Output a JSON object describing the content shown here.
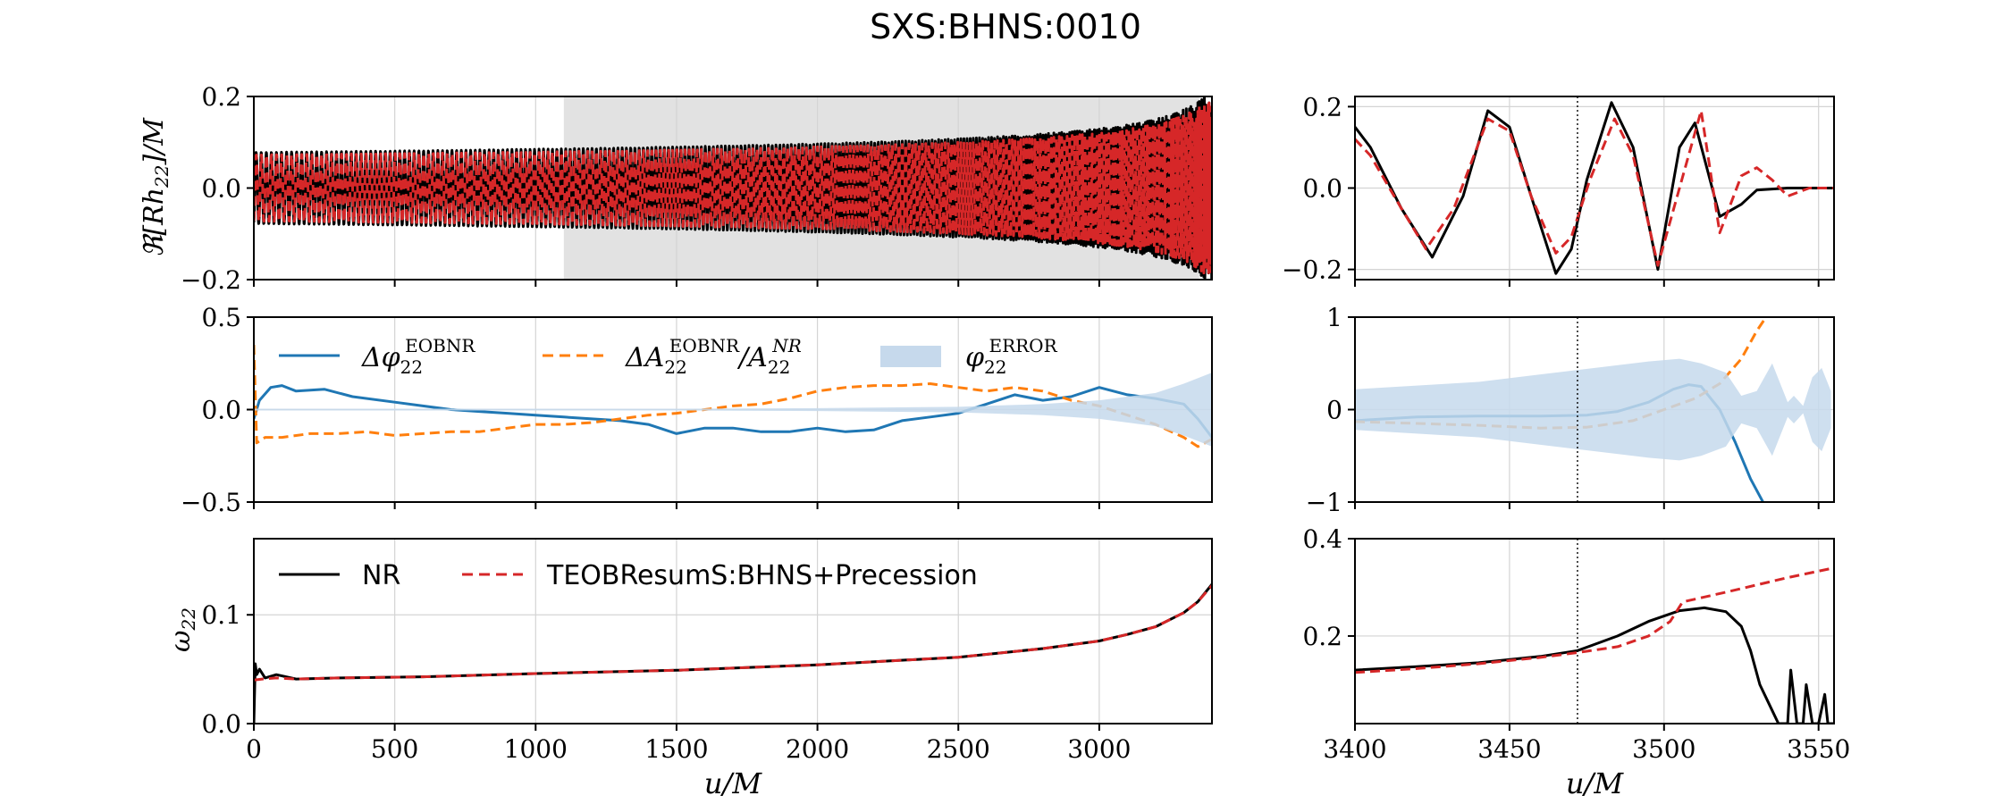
{
  "title": "SXS:BHNS:0010",
  "xlabel": "u/M",
  "colors": {
    "nr": "#000000",
    "eob": "#d62728",
    "dphi": "#1f77b4",
    "damp": "#ff7f0e",
    "err_band": "#c6d9ec",
    "window": "#e2e2e2"
  },
  "chart_data": [
    {
      "id": "strain-full",
      "type": "line",
      "ylabel": "ℜ[R h22]/M",
      "xlim": [
        0,
        3400
      ],
      "ylim": [
        -0.2,
        0.2
      ],
      "xticks": [
        0,
        500,
        1000,
        1500,
        2000,
        2500,
        3000
      ],
      "yticks": [
        -0.2,
        0.0,
        0.2
      ],
      "ytick_labels": [
        "−0.2",
        "0.0",
        "0.2"
      ],
      "shaded_window": [
        1100,
        3355
      ],
      "series": [
        {
          "name": "NR",
          "color": "#000000",
          "style": "solid",
          "kind": "strain",
          "phase": 1.9,
          "amp_scale": 1.0
        },
        {
          "name": "TEOBResumS:BHNS+Precession",
          "color": "#d62728",
          "style": "dashed",
          "kind": "strain",
          "phase": 1.75,
          "amp_scale": 0.93
        }
      ]
    },
    {
      "id": "diff-full",
      "type": "line",
      "xlim": [
        0,
        3400
      ],
      "ylim": [
        -0.5,
        0.5
      ],
      "xticks": [
        0,
        500,
        1000,
        1500,
        2000,
        2500,
        3000
      ],
      "yticks": [
        -0.5,
        0.0,
        0.5
      ],
      "ytick_labels": [
        "−0.5",
        "0.0",
        "0.5"
      ],
      "legend": [
        "ΔφEOBNR 22",
        "ΔAEOBNR 22 / ANR 22",
        "φERROR 22"
      ],
      "series": [
        {
          "name": "Δφ22 EOBNR",
          "color": "#1f77b4",
          "style": "solid",
          "x": [
            0,
            20,
            60,
            100,
            150,
            250,
            350,
            500,
            600,
            700,
            800,
            900,
            1000,
            1100,
            1200,
            1300,
            1400,
            1500,
            1600,
            1700,
            1800,
            1900,
            2000,
            2100,
            2200,
            2300,
            2400,
            2500,
            2600,
            2700,
            2800,
            2900,
            3000,
            3100,
            3200,
            3300,
            3350,
            3400
          ],
          "y": [
            -0.05,
            0.05,
            0.12,
            0.13,
            0.1,
            0.11,
            0.07,
            0.04,
            0.02,
            0.0,
            -0.01,
            -0.02,
            -0.03,
            -0.04,
            -0.05,
            -0.06,
            -0.08,
            -0.13,
            -0.1,
            -0.1,
            -0.12,
            -0.12,
            -0.1,
            -0.12,
            -0.11,
            -0.06,
            -0.04,
            -0.02,
            0.03,
            0.08,
            0.05,
            0.07,
            0.12,
            0.08,
            0.06,
            0.03,
            -0.05,
            -0.15
          ]
        },
        {
          "name": "ΔA22 EOBNR / A22 NR",
          "color": "#ff7f0e",
          "style": "dashed",
          "x": [
            0,
            10,
            40,
            100,
            200,
            300,
            400,
            500,
            600,
            700,
            800,
            900,
            1000,
            1100,
            1200,
            1300,
            1400,
            1500,
            1600,
            1700,
            1800,
            1900,
            2000,
            2100,
            2200,
            2300,
            2400,
            2500,
            2600,
            2700,
            2800,
            2900,
            3000,
            3100,
            3200,
            3300,
            3350,
            3400
          ],
          "y": [
            0.35,
            -0.18,
            -0.15,
            -0.15,
            -0.13,
            -0.13,
            -0.12,
            -0.14,
            -0.13,
            -0.12,
            -0.12,
            -0.1,
            -0.08,
            -0.08,
            -0.07,
            -0.05,
            -0.03,
            -0.02,
            0.0,
            0.02,
            0.03,
            0.06,
            0.1,
            0.12,
            0.13,
            0.13,
            0.14,
            0.12,
            0.1,
            0.12,
            0.1,
            0.05,
            0.02,
            -0.03,
            -0.08,
            -0.15,
            -0.2,
            -0.16
          ]
        },
        {
          "name": "φ22 ERROR",
          "color": "#c6d9ec",
          "style": "band",
          "x": [
            0,
            1500,
            2000,
            2500,
            2800,
            3000,
            3200,
            3300,
            3400
          ],
          "half": [
            0.005,
            0.005,
            0.008,
            0.015,
            0.03,
            0.05,
            0.09,
            0.14,
            0.2
          ]
        }
      ]
    },
    {
      "id": "freq-full",
      "type": "line",
      "ylabel": "ω22",
      "xlabel": "u/M",
      "xlim": [
        0,
        3400
      ],
      "ylim": [
        0.0,
        0.17
      ],
      "xticks": [
        0,
        500,
        1000,
        1500,
        2000,
        2500,
        3000
      ],
      "xtick_labels": [
        "0",
        "500",
        "1000",
        "1500",
        "2000",
        "2500",
        "3000"
      ],
      "yticks": [
        0.0,
        0.1
      ],
      "ytick_labels": [
        "0.0",
        "0.1"
      ],
      "legend": [
        "NR",
        "TEOBResumS:BHNS+Precession"
      ],
      "series": [
        {
          "name": "NR",
          "color": "#000000",
          "style": "solid",
          "x": [
            0,
            5,
            10,
            20,
            40,
            80,
            150,
            300,
            600,
            1000,
            1500,
            2000,
            2500,
            2800,
            3000,
            3100,
            3200,
            3300,
            3350,
            3400
          ],
          "y": [
            0.0,
            0.055,
            0.045,
            0.05,
            0.042,
            0.045,
            0.041,
            0.042,
            0.043,
            0.046,
            0.049,
            0.054,
            0.061,
            0.069,
            0.076,
            0.082,
            0.089,
            0.102,
            0.112,
            0.128
          ]
        },
        {
          "name": "TEOBResumS:BHNS+Precession",
          "color": "#d62728",
          "style": "dashed",
          "x": [
            0,
            30,
            80,
            150,
            300,
            600,
            1000,
            1500,
            2000,
            2500,
            2800,
            3000,
            3100,
            3200,
            3300,
            3350,
            3400
          ],
          "y": [
            0.04,
            0.041,
            0.042,
            0.041,
            0.042,
            0.043,
            0.046,
            0.049,
            0.054,
            0.061,
            0.069,
            0.076,
            0.082,
            0.089,
            0.102,
            0.112,
            0.127
          ]
        }
      ]
    },
    {
      "id": "strain-zoom",
      "type": "line",
      "xlim": [
        3400,
        3555
      ],
      "ylim": [
        -0.225,
        0.225
      ],
      "xticks": [
        3400,
        3450,
        3500,
        3550
      ],
      "yticks": [
        -0.2,
        0.0,
        0.2
      ],
      "ytick_labels": [
        "−0.2",
        "0.0",
        "0.2"
      ],
      "vline": 3472,
      "series": [
        {
          "name": "NR",
          "color": "#000000",
          "style": "solid",
          "x": [
            3400,
            3405,
            3415,
            3425,
            3435,
            3443,
            3450,
            3457,
            3465,
            3470,
            3475,
            3483,
            3490,
            3498,
            3505,
            3510,
            3518,
            3525,
            3530,
            3540,
            3555
          ],
          "y": [
            0.15,
            0.1,
            -0.05,
            -0.17,
            -0.02,
            0.19,
            0.15,
            -0.02,
            -0.21,
            -0.15,
            0.02,
            0.21,
            0.1,
            -0.2,
            0.1,
            0.16,
            -0.07,
            -0.04,
            -0.005,
            0.0,
            0.0
          ]
        },
        {
          "name": "TEOBResumS:BHNS+Precession",
          "color": "#d62728",
          "style": "dashed",
          "x": [
            3400,
            3405,
            3415,
            3423,
            3432,
            3443,
            3450,
            3457,
            3465,
            3470,
            3476,
            3484,
            3490,
            3498,
            3505,
            3512,
            3518,
            3525,
            3530,
            3535,
            3540,
            3547,
            3555
          ],
          "y": [
            0.12,
            0.08,
            -0.05,
            -0.15,
            -0.05,
            0.17,
            0.14,
            -0.02,
            -0.16,
            -0.12,
            0.02,
            0.17,
            0.08,
            -0.19,
            0.0,
            0.19,
            -0.11,
            0.03,
            0.05,
            0.02,
            -0.02,
            0.0,
            0.0
          ]
        }
      ]
    },
    {
      "id": "diff-zoom",
      "type": "line",
      "xlim": [
        3400,
        3555
      ],
      "ylim": [
        -1,
        1
      ],
      "xticks": [
        3400,
        3450,
        3500,
        3550
      ],
      "yticks": [
        -1,
        0,
        1
      ],
      "ytick_labels": [
        "−1",
        "0",
        "1"
      ],
      "vline": 3472,
      "series": [
        {
          "name": "Δφ22 EOBNR",
          "color": "#1f77b4",
          "style": "solid",
          "x": [
            3400,
            3420,
            3440,
            3460,
            3475,
            3485,
            3495,
            3503,
            3508,
            3512,
            3518,
            3523,
            3528,
            3532
          ],
          "y": [
            -0.12,
            -0.08,
            -0.07,
            -0.07,
            -0.06,
            -0.02,
            0.08,
            0.22,
            0.27,
            0.25,
            0.0,
            -0.35,
            -0.75,
            -1.0
          ]
        },
        {
          "name": "ΔA22 EOBNR / A22 NR",
          "color": "#ff7f0e",
          "style": "dashed",
          "x": [
            3400,
            3420,
            3440,
            3460,
            3475,
            3490,
            3500,
            3510,
            3518,
            3525,
            3530,
            3533
          ],
          "y": [
            -0.13,
            -0.15,
            -0.17,
            -0.2,
            -0.19,
            -0.12,
            0.0,
            0.12,
            0.28,
            0.55,
            0.85,
            1.0
          ]
        },
        {
          "name": "φ22 ERROR",
          "color": "#c6d9ec",
          "style": "band",
          "x": [
            3400,
            3420,
            3440,
            3460,
            3480,
            3495,
            3505,
            3512,
            3520,
            3525,
            3530,
            3535,
            3540,
            3542,
            3545,
            3548,
            3551,
            3554
          ],
          "half": [
            0.22,
            0.26,
            0.3,
            0.38,
            0.46,
            0.52,
            0.55,
            0.5,
            0.4,
            0.15,
            0.2,
            0.5,
            0.08,
            0.15,
            0.04,
            0.35,
            0.45,
            0.2
          ]
        }
      ]
    },
    {
      "id": "freq-zoom",
      "type": "line",
      "xlabel": "u/M",
      "xlim": [
        3400,
        3555
      ],
      "ylim": [
        0.02,
        0.4
      ],
      "xticks": [
        3400,
        3450,
        3500,
        3550
      ],
      "xtick_labels": [
        "3400",
        "3450",
        "3500",
        "3550"
      ],
      "yticks": [
        0.2,
        0.4
      ],
      "ytick_labels": [
        "0.2",
        "0.4"
      ],
      "vline": 3472,
      "series": [
        {
          "name": "NR",
          "color": "#000000",
          "style": "solid",
          "x": [
            3400,
            3420,
            3440,
            3460,
            3472,
            3485,
            3495,
            3505,
            3513,
            3520,
            3525,
            3528,
            3531,
            3534,
            3537,
            3540,
            3541,
            3543,
            3545,
            3546,
            3548,
            3550,
            3552,
            3553,
            3555
          ],
          "y": [
            0.13,
            0.137,
            0.145,
            0.158,
            0.17,
            0.2,
            0.23,
            0.252,
            0.258,
            0.25,
            0.22,
            0.17,
            0.1,
            0.06,
            0.02,
            0.02,
            0.13,
            0.02,
            0.02,
            0.1,
            0.02,
            0.02,
            0.08,
            0.02,
            0.02
          ]
        },
        {
          "name": "TEOBResumS:BHNS+Precession",
          "color": "#d62728",
          "style": "dashed",
          "x": [
            3400,
            3420,
            3440,
            3460,
            3472,
            3485,
            3495,
            3502,
            3506,
            3520,
            3540,
            3555
          ],
          "y": [
            0.125,
            0.133,
            0.143,
            0.156,
            0.166,
            0.178,
            0.2,
            0.23,
            0.27,
            0.29,
            0.32,
            0.34
          ]
        }
      ]
    }
  ]
}
